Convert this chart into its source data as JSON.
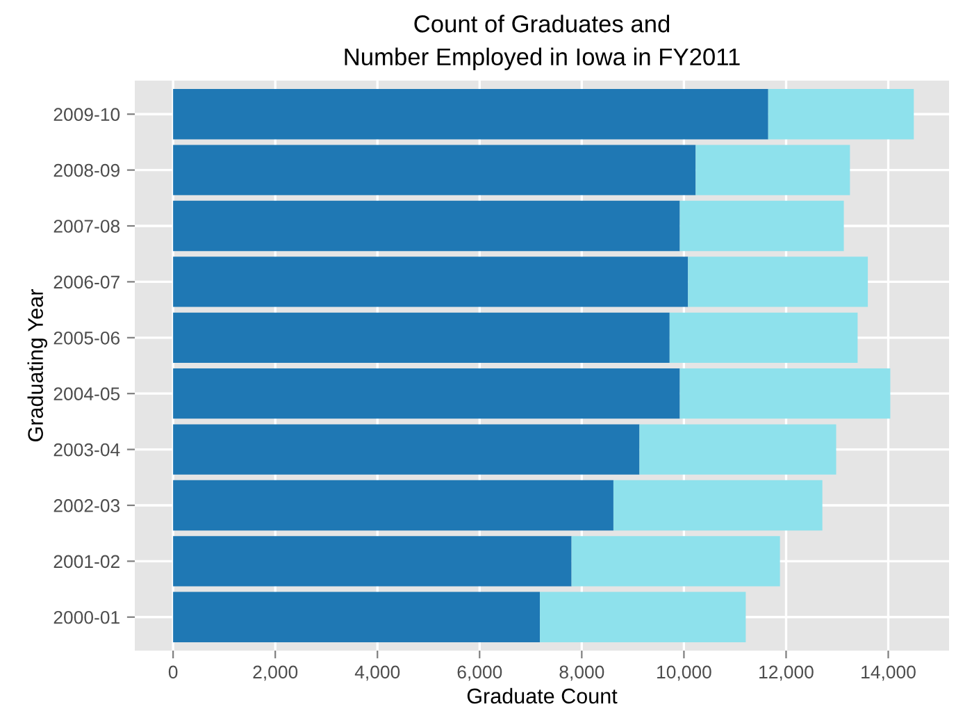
{
  "chart_data": {
    "type": "bar",
    "orientation": "horizontal",
    "stacked": true,
    "title": "Count of Graduates and\nNumber Employed in Iowa in FY2011",
    "xlabel": "Graduate Count",
    "ylabel": "Graduating Year",
    "categories": [
      "2009-10",
      "2008-09",
      "2007-08",
      "2006-07",
      "2005-06",
      "2004-05",
      "2003-04",
      "2002-03",
      "2001-02",
      "2000-01"
    ],
    "series": [
      {
        "color": "#1f78b4",
        "values": [
          11650,
          10230,
          9920,
          10080,
          9720,
          9920,
          9130,
          8620,
          7800,
          7180
        ]
      },
      {
        "color": "#8ee1ec",
        "values": [
          2850,
          3020,
          3210,
          3520,
          3680,
          4120,
          3850,
          4090,
          4080,
          4030
        ]
      }
    ],
    "xlim": [
      -750,
      15190
    ],
    "xticks": [
      0,
      {
        "value": 2000,
        "label": "2,000"
      },
      {
        "value": 4000,
        "label": "4,000"
      },
      {
        "value": 6000,
        "label": "6,000"
      },
      {
        "value": 8000,
        "label": "8,000"
      },
      {
        "value": 10000,
        "label": "10,000"
      },
      {
        "value": 12000,
        "label": "12,000"
      },
      {
        "value": 14000,
        "label": "14,000"
      }
    ],
    "grid": true
  }
}
